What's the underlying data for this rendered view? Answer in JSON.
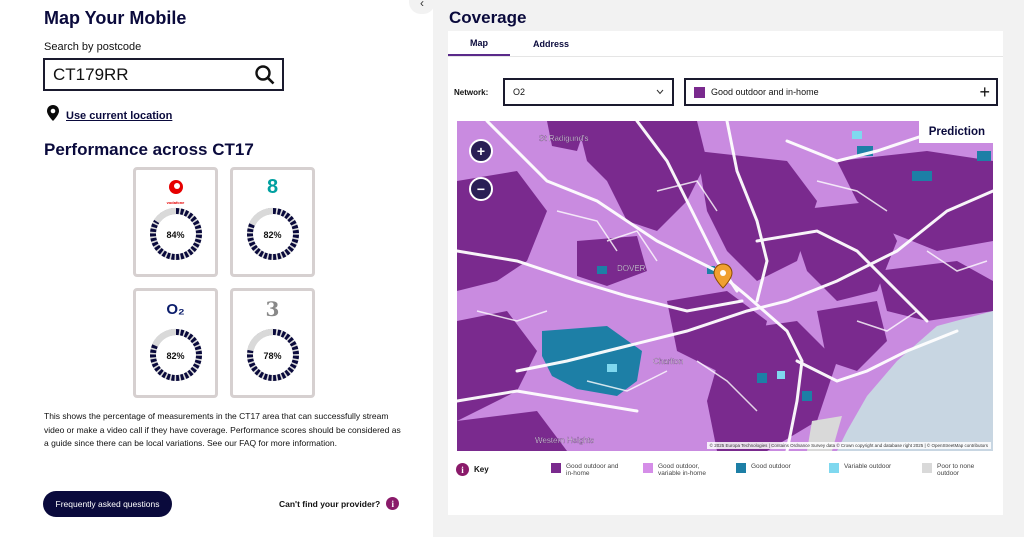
{
  "left": {
    "title": "Map Your Mobile",
    "search_label": "Search by postcode",
    "search_value": "CT179RR",
    "use_location": "Use current location",
    "performance_title": "Performance across CT17",
    "providers": [
      {
        "name": "vodafone",
        "logo_text": "vodafone",
        "percent": "84%",
        "value": 84
      },
      {
        "name": "ee",
        "logo_text": "8",
        "percent": "82%",
        "value": 82
      },
      {
        "name": "o2",
        "logo_text": "O₂",
        "percent": "82%",
        "value": 82
      },
      {
        "name": "three",
        "logo_text": "3",
        "percent": "78%",
        "value": 78
      }
    ],
    "description": "This shows the percentage of measurements in the CT17 area that can successfully stream video or make a video call if they have coverage. Performance scores should be considered as a guide since there can be local variations. See our FAQ for more information.",
    "faq_button": "Frequently asked questions",
    "cant_find": "Can't find your provider?",
    "info_glyph": "i"
  },
  "coverage": {
    "title": "Coverage",
    "tabs": [
      "Map",
      "Address"
    ],
    "active_tab": "Map",
    "network_label": "Network:",
    "network_value": "O2",
    "coverage_value": "Good outdoor and in-home",
    "prediction_label": "Prediction",
    "map_labels": {
      "dover": "DOVER",
      "st_radigunds": "St Radigund's",
      "charlton": "Charlton",
      "western_heights": "Western Heights"
    },
    "attribution": "© 2025 Europa Technologies | Contains Ordnance Survey data © Crown copyright and database right 2025 | © OpenStreetMap contributors",
    "key_label": "Key",
    "legend": [
      {
        "label": "Good outdoor and in-home",
        "color": "#7a2a8e"
      },
      {
        "label": "Good outdoor, variable in-home",
        "color": "#d58ee8"
      },
      {
        "label": "Good outdoor",
        "color": "#1d7fa6"
      },
      {
        "label": "Variable outdoor",
        "color": "#7fd8ef"
      },
      {
        "label": "Poor to none outdoor",
        "color": "#d9d9d9"
      }
    ]
  },
  "colors": {
    "navy": "#0a0a3c",
    "purple_dark": "#7a2a8e",
    "purple_light": "#d58ee8",
    "teal": "#1d7fa6",
    "sea": "#c8d6e2"
  }
}
